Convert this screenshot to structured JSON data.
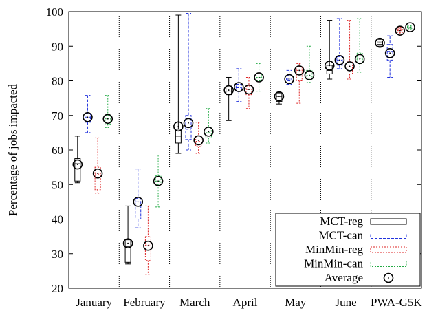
{
  "chart_data": {
    "type": "box",
    "ylabel": "Percentage of jobs impacted",
    "ylim": [
      20,
      100
    ],
    "yticks": [
      "20",
      "30",
      "40",
      "50",
      "60",
      "70",
      "80",
      "90",
      "100"
    ],
    "categories": [
      "January",
      "February",
      "March",
      "April",
      "May",
      "June",
      "PWA-G5K"
    ],
    "grid": "vertical dotted separators between categories",
    "legend_position": "bottom-right",
    "series": [
      {
        "name": "MCT-reg",
        "style": "solid",
        "color": "#000000",
        "data": [
          {
            "whisker_low": 50.5,
            "q1": 51.0,
            "median": 56.0,
            "q3": 57.5,
            "whisker_high": 64.0,
            "mean": 55.8
          },
          {
            "whisker_low": 27.0,
            "q1": 27.5,
            "median": 32.0,
            "q3": 34.0,
            "whisker_high": 43.8,
            "mean": 33.0
          },
          {
            "whisker_low": 59.0,
            "q1": 62.0,
            "median": 64.0,
            "q3": 66.0,
            "whisker_high": 99.0,
            "mean": 66.8
          },
          {
            "whisker_low": 68.5,
            "q1": 76.0,
            "median": 77.0,
            "q3": 78.5,
            "whisker_high": 81.0,
            "mean": 77.3
          },
          {
            "whisker_low": 73.3,
            "q1": 74.0,
            "median": 75.5,
            "q3": 76.5,
            "whisker_high": 77.0,
            "mean": 75.5
          },
          {
            "whisker_low": 80.5,
            "q1": 82.0,
            "median": 83.0,
            "q3": 84.5,
            "whisker_high": 97.5,
            "mean": 84.4
          },
          {
            "whisker_low": 90.0,
            "q1": 90.5,
            "median": 91.0,
            "q3": 91.5,
            "whisker_high": 92.0,
            "mean": 91.0
          }
        ]
      },
      {
        "name": "MCT-can",
        "style": "dashed",
        "color": "#2233dd",
        "data": [
          {
            "whisker_low": 65.0,
            "q1": 68.0,
            "median": 69.5,
            "q3": 70.5,
            "whisker_high": 75.8,
            "mean": 69.5
          },
          {
            "whisker_low": 37.5,
            "q1": 40.0,
            "median": 45.0,
            "q3": 46.0,
            "whisker_high": 54.5,
            "mean": 45.0
          },
          {
            "whisker_low": 60.0,
            "q1": 63.0,
            "median": 66.0,
            "q3": 70.0,
            "whisker_high": 99.5,
            "mean": 67.8
          },
          {
            "whisker_low": 74.0,
            "q1": 77.0,
            "median": 78.0,
            "q3": 79.0,
            "whisker_high": 83.5,
            "mean": 78.2
          },
          {
            "whisker_low": 79.0,
            "q1": 80.0,
            "median": 80.5,
            "q3": 81.5,
            "whisker_high": 83.0,
            "mean": 80.5
          },
          {
            "whisker_low": 83.5,
            "q1": 84.5,
            "median": 86.0,
            "q3": 87.0,
            "whisker_high": 98.0,
            "mean": 86.0
          },
          {
            "whisker_low": 81.0,
            "q1": 86.0,
            "median": 88.5,
            "q3": 90.5,
            "whisker_high": 93.0,
            "mean": 88.0
          }
        ]
      },
      {
        "name": "MinMin-reg",
        "style": "dotted",
        "color": "#dd2222",
        "data": [
          {
            "whisker_low": 47.5,
            "q1": 48.5,
            "median": 53.0,
            "q3": 55.0,
            "whisker_high": 63.5,
            "mean": 53.2
          },
          {
            "whisker_low": 24.0,
            "q1": 28.0,
            "median": 32.5,
            "q3": 35.0,
            "whisker_high": 43.8,
            "mean": 32.3
          },
          {
            "whisker_low": 59.0,
            "q1": 61.0,
            "median": 62.5,
            "q3": 64.0,
            "whisker_high": 68.0,
            "mean": 62.8
          },
          {
            "whisker_low": 72.0,
            "q1": 76.0,
            "median": 77.5,
            "q3": 78.5,
            "whisker_high": 81.0,
            "mean": 77.5
          },
          {
            "whisker_low": 73.5,
            "q1": 80.0,
            "median": 83.0,
            "q3": 84.0,
            "whisker_high": 85.0,
            "mean": 83.0
          },
          {
            "whisker_low": 80.5,
            "q1": 82.0,
            "median": 84.0,
            "q3": 85.5,
            "whisker_high": 97.5,
            "mean": 84.2
          },
          {
            "whisker_low": 93.5,
            "q1": 94.0,
            "median": 94.5,
            "q3": 95.0,
            "whisker_high": 95.5,
            "mean": 94.5
          }
        ]
      },
      {
        "name": "MinMin-can",
        "style": "dotted",
        "color": "#22aa44",
        "data": [
          {
            "whisker_low": 66.5,
            "q1": 67.5,
            "median": 69.0,
            "q3": 70.0,
            "whisker_high": 75.8,
            "mean": 69.0
          },
          {
            "whisker_low": 43.5,
            "q1": 50.0,
            "median": 51.0,
            "q3": 52.5,
            "whisker_high": 58.5,
            "mean": 51.0
          },
          {
            "whisker_low": 62.0,
            "q1": 63.5,
            "median": 65.0,
            "q3": 66.5,
            "whisker_high": 72.0,
            "mean": 65.3
          },
          {
            "whisker_low": 77.0,
            "q1": 80.0,
            "median": 81.0,
            "q3": 82.0,
            "whisker_high": 85.0,
            "mean": 81.0
          },
          {
            "whisker_low": 79.5,
            "q1": 80.5,
            "median": 81.5,
            "q3": 83.0,
            "whisker_high": 90.0,
            "mean": 81.6
          },
          {
            "whisker_low": 82.5,
            "q1": 85.0,
            "median": 86.5,
            "q3": 88.0,
            "whisker_high": 98.0,
            "mean": 86.3
          },
          {
            "whisker_low": 95.0,
            "q1": 95.2,
            "median": 95.5,
            "q3": 95.8,
            "whisker_high": 96.0,
            "mean": 95.5
          }
        ]
      }
    ],
    "legend": [
      {
        "label": "MCT-reg",
        "marker": "box",
        "style": "solid",
        "color": "#000000"
      },
      {
        "label": "MCT-can",
        "marker": "box",
        "style": "dashed",
        "color": "#2233dd"
      },
      {
        "label": "MinMin-reg",
        "marker": "box",
        "style": "dotted",
        "color": "#dd2222"
      },
      {
        "label": "MinMin-can",
        "marker": "box",
        "style": "dotted",
        "color": "#22aa44"
      },
      {
        "label": "Average",
        "marker": "circle-dot",
        "style": "solid",
        "color": "#000000"
      }
    ]
  }
}
